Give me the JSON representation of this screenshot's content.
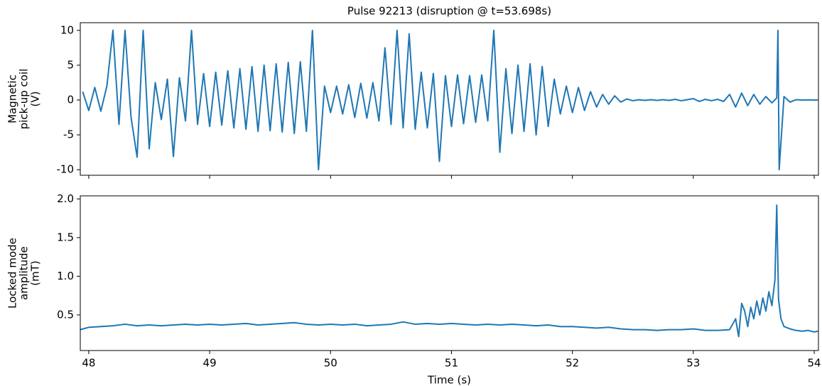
{
  "chart_data": [
    {
      "type": "line",
      "title": "Pulse 92213 (disruption @ t=53.698s)",
      "ylabel": [
        "Magnetic",
        "pick-up coil",
        "(V)"
      ],
      "xlim": [
        47.93,
        54.035
      ],
      "xticks": [
        48,
        49,
        50,
        51,
        52,
        53,
        54
      ],
      "show_xtick_labels": false,
      "ylim": [
        -10.8,
        11.1
      ],
      "yticks": [
        -10,
        -5,
        0,
        5,
        10
      ],
      "series": [
        {
          "color": "#1f77b4",
          "x": [
            47.95,
            48.0,
            48.05,
            48.1,
            48.15,
            48.2,
            48.25,
            48.3,
            48.35,
            48.4,
            48.45,
            48.5,
            48.55,
            48.6,
            48.65,
            48.7,
            48.75,
            48.8,
            48.85,
            48.9,
            48.95,
            49.0,
            49.05,
            49.1,
            49.15,
            49.2,
            49.25,
            49.3,
            49.35,
            49.4,
            49.45,
            49.5,
            49.55,
            49.6,
            49.65,
            49.7,
            49.75,
            49.8,
            49.85,
            49.9,
            49.95,
            50.0,
            50.05,
            50.1,
            50.15,
            50.2,
            50.25,
            50.3,
            50.35,
            50.4,
            50.45,
            50.5,
            50.55,
            50.6,
            50.65,
            50.7,
            50.75,
            50.8,
            50.85,
            50.9,
            50.95,
            51.0,
            51.05,
            51.1,
            51.15,
            51.2,
            51.25,
            51.3,
            51.35,
            51.4,
            51.45,
            51.5,
            51.55,
            51.6,
            51.65,
            51.7,
            51.75,
            51.8,
            51.85,
            51.9,
            51.95,
            52.0,
            52.05,
            52.1,
            52.15,
            52.2,
            52.25,
            52.3,
            52.35,
            52.4,
            52.45,
            52.5,
            52.55,
            52.6,
            52.65,
            52.7,
            52.75,
            52.8,
            52.85,
            52.9,
            52.95,
            53.0,
            53.05,
            53.1,
            53.15,
            53.2,
            53.25,
            53.3,
            53.35,
            53.4,
            53.45,
            53.5,
            53.55,
            53.6,
            53.65,
            53.69,
            53.7,
            53.71,
            53.75,
            53.8,
            53.85,
            53.9,
            53.95,
            54.0,
            54.03
          ],
          "values": [
            1.2,
            -1.5,
            1.8,
            -1.6,
            2.0,
            10.0,
            -3.5,
            10.0,
            -2.5,
            -8.2,
            10.0,
            -7.0,
            2.5,
            -2.8,
            3.0,
            -8.1,
            3.2,
            -3.0,
            10.0,
            -3.5,
            3.8,
            -3.8,
            4.0,
            -3.6,
            4.2,
            -4.0,
            4.5,
            -4.2,
            4.8,
            -4.5,
            5.0,
            -4.4,
            5.2,
            -4.6,
            5.4,
            -4.8,
            5.5,
            -4.5,
            10.0,
            -10.0,
            2.0,
            -1.8,
            2.0,
            -2.0,
            2.2,
            -2.5,
            2.4,
            -2.6,
            2.5,
            -3.0,
            7.5,
            -3.5,
            10.0,
            -4.0,
            9.5,
            -4.2,
            4.0,
            -4.0,
            3.8,
            -8.8,
            3.5,
            -3.8,
            3.6,
            -3.4,
            3.5,
            -3.2,
            3.6,
            -3.0,
            10.0,
            -7.5,
            4.5,
            -4.8,
            5.0,
            -4.5,
            5.2,
            -5.0,
            4.8,
            -3.8,
            3.0,
            -2.0,
            2.0,
            -1.8,
            1.8,
            -1.5,
            1.2,
            -1.0,
            0.8,
            -0.6,
            0.6,
            -0.3,
            0.15,
            -0.1,
            0.05,
            -0.05,
            0.05,
            -0.05,
            0.05,
            -0.05,
            0.1,
            -0.1,
            0.05,
            0.2,
            -0.2,
            0.1,
            -0.1,
            0.1,
            -0.2,
            0.8,
            -1.0,
            1.0,
            -0.8,
            0.8,
            -0.6,
            0.5,
            -0.4,
            0.3,
            10.0,
            -10.0,
            0.5,
            -0.3,
            0.05,
            0.0,
            0.02,
            0.0,
            0.0
          ]
        }
      ]
    },
    {
      "type": "line",
      "ylabel": [
        "Locked mode",
        "amplitude",
        "(mT)"
      ],
      "xlabel": "Time (s)",
      "xlim": [
        47.93,
        54.035
      ],
      "xticks": [
        48,
        49,
        50,
        51,
        52,
        53,
        54
      ],
      "show_xtick_labels": true,
      "ylim": [
        0.04,
        2.04
      ],
      "yticks": [
        0.5,
        {
          "value": 1.0,
          "label": "1.0"
        },
        1.5,
        {
          "value": 2.0,
          "label": "2.0"
        }
      ],
      "series": [
        {
          "color": "#1f77b4",
          "x": [
            47.93,
            48.0,
            48.1,
            48.2,
            48.3,
            48.4,
            48.5,
            48.6,
            48.7,
            48.8,
            48.9,
            49.0,
            49.1,
            49.2,
            49.3,
            49.4,
            49.5,
            49.6,
            49.7,
            49.8,
            49.9,
            50.0,
            50.1,
            50.2,
            50.3,
            50.4,
            50.5,
            50.6,
            50.7,
            50.8,
            50.9,
            51.0,
            51.1,
            51.2,
            51.3,
            51.4,
            51.5,
            51.6,
            51.7,
            51.8,
            51.9,
            52.0,
            52.1,
            52.2,
            52.3,
            52.4,
            52.5,
            52.6,
            52.7,
            52.8,
            52.9,
            53.0,
            53.1,
            53.2,
            53.3,
            53.35,
            53.375,
            53.4,
            53.425,
            53.45,
            53.475,
            53.5,
            53.525,
            53.55,
            53.575,
            53.6,
            53.625,
            53.65,
            53.675,
            53.69,
            53.705,
            53.725,
            53.75,
            53.8,
            53.85,
            53.9,
            53.95,
            54.0,
            54.03
          ],
          "values": [
            0.31,
            0.34,
            0.35,
            0.36,
            0.38,
            0.36,
            0.37,
            0.36,
            0.37,
            0.38,
            0.37,
            0.38,
            0.37,
            0.38,
            0.39,
            0.37,
            0.38,
            0.39,
            0.4,
            0.38,
            0.37,
            0.38,
            0.37,
            0.38,
            0.36,
            0.37,
            0.38,
            0.41,
            0.38,
            0.39,
            0.38,
            0.39,
            0.38,
            0.37,
            0.38,
            0.37,
            0.38,
            0.37,
            0.36,
            0.37,
            0.35,
            0.35,
            0.34,
            0.33,
            0.34,
            0.32,
            0.31,
            0.31,
            0.3,
            0.31,
            0.31,
            0.32,
            0.3,
            0.3,
            0.31,
            0.45,
            0.22,
            0.65,
            0.55,
            0.35,
            0.6,
            0.45,
            0.68,
            0.5,
            0.72,
            0.55,
            0.8,
            0.62,
            0.95,
            1.92,
            0.7,
            0.45,
            0.35,
            0.32,
            0.3,
            0.29,
            0.3,
            0.28,
            0.29
          ]
        }
      ]
    }
  ]
}
